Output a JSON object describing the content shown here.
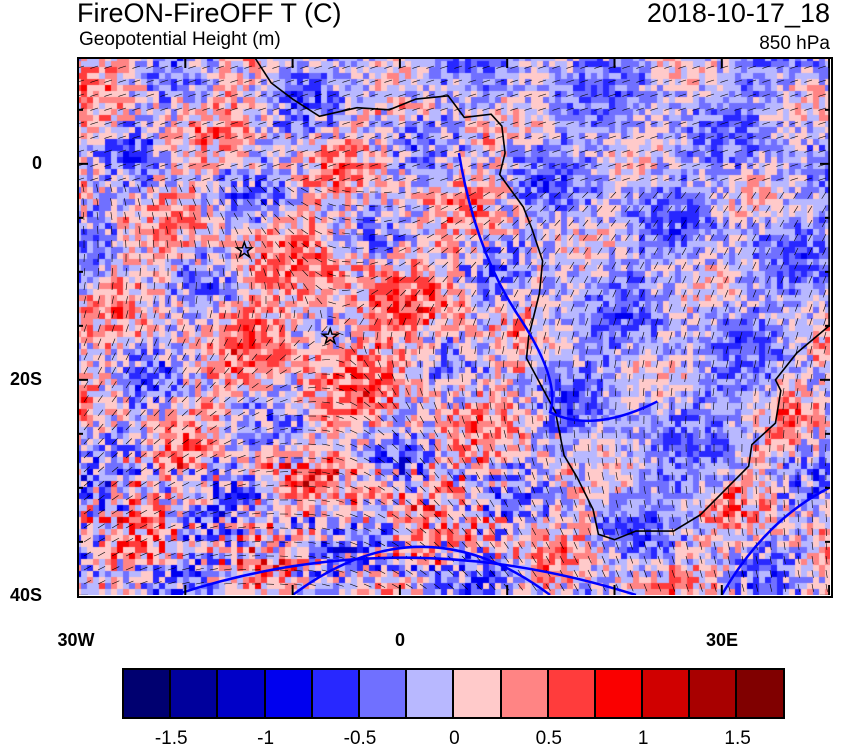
{
  "header": {
    "title": "FireON-FireOFF T (C)",
    "subtitle": "Geopotential Height (m)",
    "date": "2018-10-17_18",
    "level": "850 hPa"
  },
  "map": {
    "lon_range": [
      -30,
      40
    ],
    "lat_range": [
      -40,
      10
    ],
    "y_ticks": [
      {
        "lat": 0,
        "label": "0"
      },
      {
        "lat": -20,
        "label": "20S"
      },
      {
        "lat": -40,
        "label": "40S"
      }
    ],
    "x_ticks": [
      {
        "lon": -30,
        "label": "30W"
      },
      {
        "lon": 0,
        "label": "0"
      },
      {
        "lon": 30,
        "label": "30E"
      }
    ],
    "markers": [
      {
        "type": "star",
        "lon": -14.5,
        "lat": -8
      },
      {
        "type": "star",
        "lon": -6.5,
        "lat": -16
      }
    ]
  },
  "colorbar": {
    "levels": [
      -1.75,
      -1.5,
      -1.25,
      -1,
      -0.75,
      -0.5,
      -0.25,
      0,
      0.25,
      0.5,
      0.75,
      1,
      1.25,
      1.5,
      1.75
    ],
    "labels": [
      "-1.5",
      "-1",
      "-0.5",
      "0",
      "0.5",
      "1",
      "1.5"
    ],
    "colors": [
      "#000070",
      "#00009c",
      "#0000c8",
      "#0000ef",
      "#2828ff",
      "#7070ff",
      "#b8b8ff",
      "#ffcaca",
      "#ff8484",
      "#ff3c3c",
      "#fa0000",
      "#d00000",
      "#a80000",
      "#800000"
    ]
  },
  "contour_color": "#0000ff"
}
